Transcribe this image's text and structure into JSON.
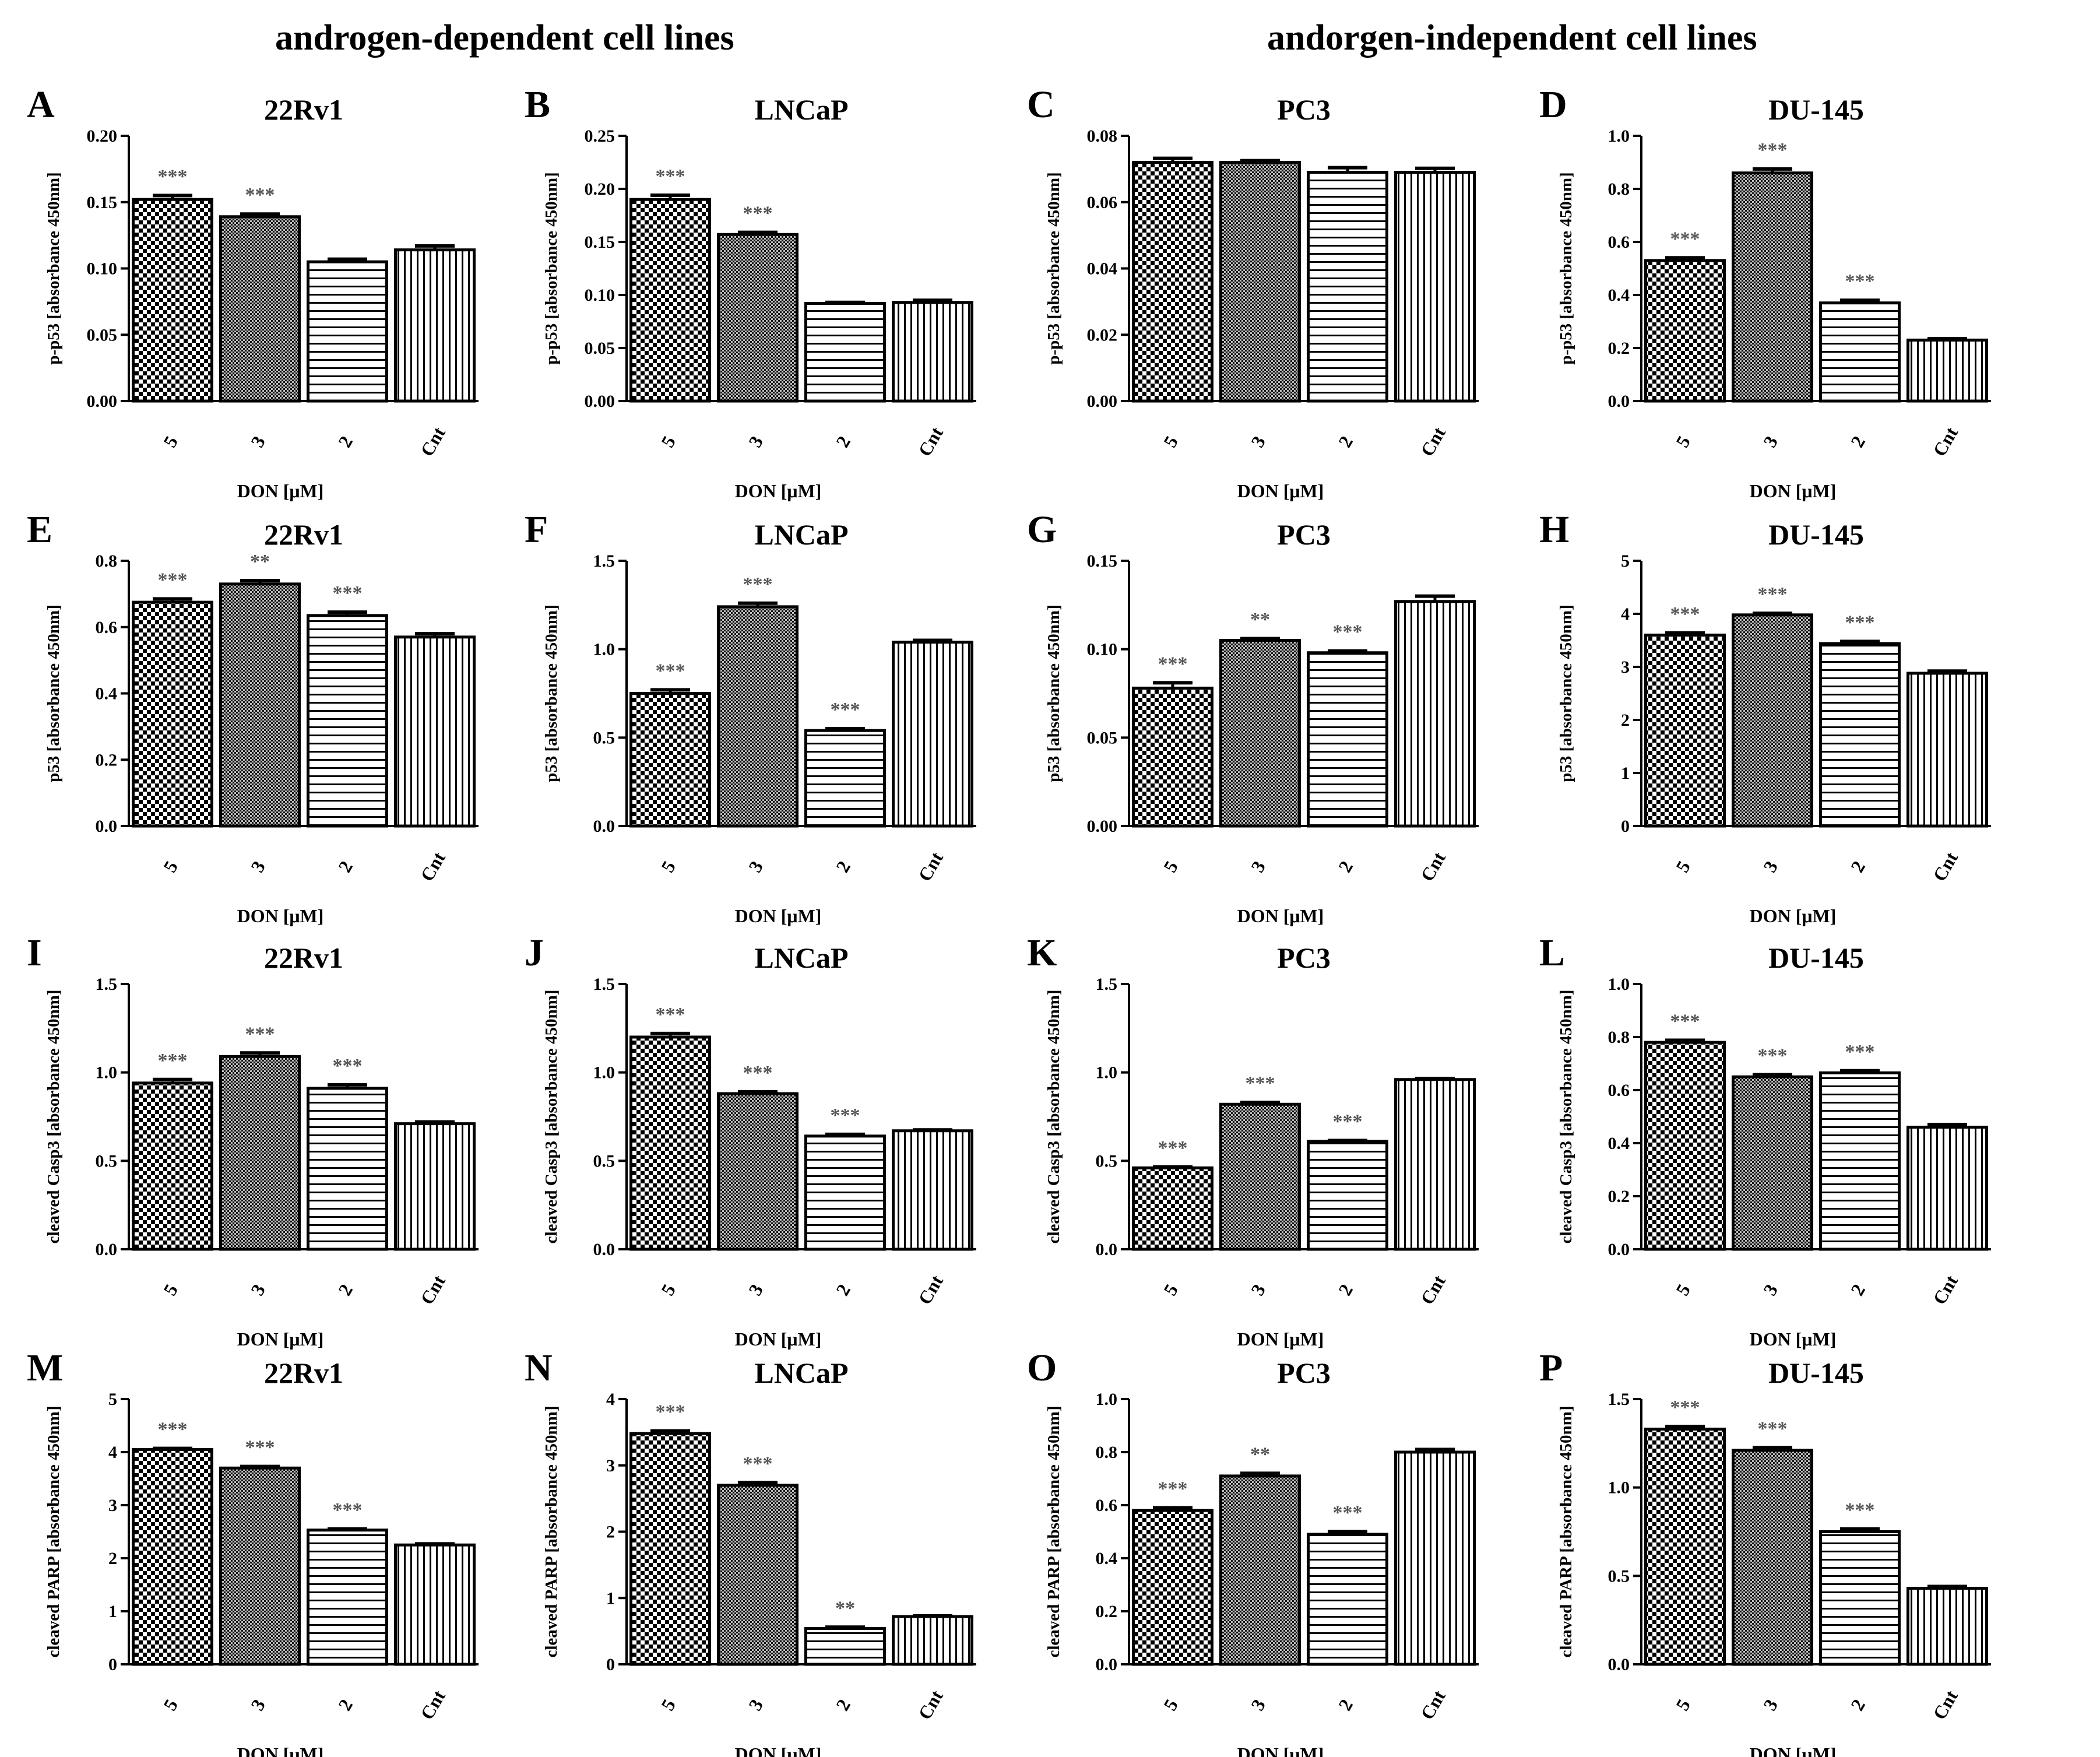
{
  "headers": {
    "left": "androgen-dependent cell lines",
    "right": "andorgen-independent cell lines"
  },
  "colors": {
    "ink": "#000000",
    "background": "#ffffff",
    "significance": "#555555"
  },
  "chart_data": [
    {
      "panel": "A",
      "type": "bar",
      "title": "22Rv1",
      "ylabel": "p-p53 [absorbance 450nm]",
      "xlabel": "DON [μM]",
      "categories": [
        "5",
        "3",
        "2",
        "Cnt"
      ],
      "values": [
        0.152,
        0.139,
        0.105,
        0.114
      ],
      "errors": [
        0.003,
        0.002,
        0.002,
        0.003
      ],
      "stars": [
        "***",
        "***",
        "",
        ""
      ],
      "ylim": [
        0,
        0.2
      ],
      "yticks": [
        "0.00",
        "0.05",
        "0.10",
        "0.15",
        "0.20"
      ],
      "patterns": [
        "check",
        "dense",
        "hlines",
        "vlines"
      ],
      "grid": false
    },
    {
      "panel": "B",
      "type": "bar",
      "title": "LNCaP",
      "ylabel": "p-p53 [absorbance 450nm]",
      "xlabel": "DON [μM]",
      "categories": [
        "5",
        "3",
        "2",
        "Cnt"
      ],
      "values": [
        0.19,
        0.157,
        0.092,
        0.093
      ],
      "errors": [
        0.004,
        0.002,
        0.001,
        0.002
      ],
      "stars": [
        "***",
        "***",
        "",
        ""
      ],
      "ylim": [
        0,
        0.25
      ],
      "yticks": [
        "0.00",
        "0.05",
        "0.10",
        "0.15",
        "0.20",
        "0.25"
      ],
      "patterns": [
        "check",
        "dense",
        "hlines",
        "vlines"
      ],
      "grid": false
    },
    {
      "panel": "C",
      "type": "bar",
      "title": "PC3",
      "ylabel": "p-p53 [absorbance 450nm]",
      "xlabel": "DON [μM]",
      "categories": [
        "5",
        "3",
        "2",
        "Cnt"
      ],
      "values": [
        0.072,
        0.072,
        0.069,
        0.069
      ],
      "errors": [
        0.0012,
        0.0005,
        0.0014,
        0.0012
      ],
      "stars": [
        "",
        "",
        "",
        ""
      ],
      "ylim": [
        0,
        0.08
      ],
      "yticks": [
        "0.00",
        "0.02",
        "0.04",
        "0.06",
        "0.08"
      ],
      "patterns": [
        "check",
        "dense",
        "hlines",
        "vlines"
      ],
      "grid": false
    },
    {
      "panel": "D",
      "type": "bar",
      "title": "DU-145",
      "ylabel": "p-p53 [absorbance 450nm]",
      "xlabel": "DON [μM]",
      "categories": [
        "5",
        "3",
        "2",
        "Cnt"
      ],
      "values": [
        0.53,
        0.86,
        0.37,
        0.23
      ],
      "errors": [
        0.01,
        0.015,
        0.01,
        0.005
      ],
      "stars": [
        "***",
        "***",
        "***",
        ""
      ],
      "ylim": [
        0,
        1.0
      ],
      "yticks": [
        "0.0",
        "0.2",
        "0.4",
        "0.6",
        "0.8",
        "1.0"
      ],
      "patterns": [
        "check",
        "dense",
        "hlines",
        "vlines"
      ],
      "grid": false
    },
    {
      "panel": "E",
      "type": "bar",
      "title": "22Rv1",
      "ylabel": "p53 [absorbance 450nm]",
      "xlabel": "DON [μM]",
      "categories": [
        "5",
        "3",
        "2",
        "Cnt"
      ],
      "values": [
        0.675,
        0.73,
        0.635,
        0.57
      ],
      "errors": [
        0.01,
        0.01,
        0.01,
        0.01
      ],
      "stars": [
        "***",
        "**",
        "***",
        ""
      ],
      "ylim": [
        0,
        0.8
      ],
      "yticks": [
        "0.0",
        "0.2",
        "0.4",
        "0.6",
        "0.8"
      ],
      "patterns": [
        "check",
        "dense",
        "hlines",
        "vlines"
      ],
      "grid": false
    },
    {
      "panel": "F",
      "type": "bar",
      "title": "LNCaP",
      "ylabel": "p53 [absorbance 450nm]",
      "xlabel": "DON [μM]",
      "categories": [
        "5",
        "3",
        "2",
        "Cnt"
      ],
      "values": [
        0.75,
        1.24,
        0.54,
        1.04
      ],
      "errors": [
        0.02,
        0.02,
        0.01,
        0.01
      ],
      "stars": [
        "***",
        "***",
        "***",
        ""
      ],
      "ylim": [
        0,
        1.5
      ],
      "yticks": [
        "0.0",
        "0.5",
        "1.0",
        "1.5"
      ],
      "patterns": [
        "check",
        "dense",
        "hlines",
        "vlines"
      ],
      "grid": false
    },
    {
      "panel": "G",
      "type": "bar",
      "title": "PC3",
      "ylabel": "p53 [absorbance 450nm]",
      "xlabel": "DON [μM]",
      "categories": [
        "5",
        "3",
        "2",
        "Cnt"
      ],
      "values": [
        0.078,
        0.105,
        0.098,
        0.127
      ],
      "errors": [
        0.003,
        0.001,
        0.001,
        0.003
      ],
      "stars": [
        "***",
        "**",
        "***",
        ""
      ],
      "ylim": [
        0,
        0.15
      ],
      "yticks": [
        "0.00",
        "0.05",
        "0.10",
        "0.15"
      ],
      "patterns": [
        "check",
        "dense",
        "hlines",
        "vlines"
      ],
      "grid": false
    },
    {
      "panel": "H",
      "type": "bar",
      "title": "DU-145",
      "ylabel": "p53 [absorbance 450nm]",
      "xlabel": "DON [μM]",
      "categories": [
        "5",
        "3",
        "2",
        "Cnt"
      ],
      "values": [
        3.6,
        3.98,
        3.44,
        2.88
      ],
      "errors": [
        0.04,
        0.03,
        0.04,
        0.04
      ],
      "stars": [
        "***",
        "***",
        "***",
        ""
      ],
      "ylim": [
        0,
        5
      ],
      "yticks": [
        "0",
        "1",
        "2",
        "3",
        "4",
        "5"
      ],
      "patterns": [
        "check",
        "dense",
        "hlines",
        "vlines"
      ],
      "grid": false
    },
    {
      "panel": "I",
      "type": "bar",
      "title": "22Rv1",
      "ylabel": "cleaved Casp3 [absorbance 450nm]",
      "xlabel": "DON [μM]",
      "categories": [
        "5",
        "3",
        "2",
        "Cnt"
      ],
      "values": [
        0.94,
        1.09,
        0.91,
        0.71
      ],
      "errors": [
        0.02,
        0.02,
        0.02,
        0.01
      ],
      "stars": [
        "***",
        "***",
        "***",
        ""
      ],
      "ylim": [
        0,
        1.5
      ],
      "yticks": [
        "0.0",
        "0.5",
        "1.0",
        "1.5"
      ],
      "patterns": [
        "check",
        "dense",
        "hlines",
        "vlines"
      ],
      "grid": false
    },
    {
      "panel": "J",
      "type": "bar",
      "title": "LNCaP",
      "ylabel": "cleaved Casp3 [absorbance 450nm]",
      "xlabel": "DON [μM]",
      "categories": [
        "5",
        "3",
        "2",
        "Cnt"
      ],
      "values": [
        1.2,
        0.88,
        0.64,
        0.67
      ],
      "errors": [
        0.02,
        0.01,
        0.01,
        0.005
      ],
      "stars": [
        "***",
        "***",
        "***",
        ""
      ],
      "ylim": [
        0,
        1.5
      ],
      "yticks": [
        "0.0",
        "0.5",
        "1.0",
        "1.5"
      ],
      "patterns": [
        "check",
        "dense",
        "hlines",
        "vlines"
      ],
      "grid": false
    },
    {
      "panel": "K",
      "type": "bar",
      "title": "PC3",
      "ylabel": "cleaved Casp3 [absorbance 450nm]",
      "xlabel": "DON [μM]",
      "categories": [
        "5",
        "3",
        "2",
        "Cnt"
      ],
      "values": [
        0.46,
        0.82,
        0.61,
        0.96
      ],
      "errors": [
        0.005,
        0.01,
        0.005,
        0.005
      ],
      "stars": [
        "***",
        "***",
        "***",
        ""
      ],
      "ylim": [
        0,
        1.5
      ],
      "yticks": [
        "0.0",
        "0.5",
        "1.0",
        "1.5"
      ],
      "patterns": [
        "check",
        "dense",
        "hlines",
        "vlines"
      ],
      "grid": false
    },
    {
      "panel": "L",
      "type": "bar",
      "title": "DU-145",
      "ylabel": "cleaved Casp3 [absorbance 450nm]",
      "xlabel": "DON [μM]",
      "categories": [
        "5",
        "3",
        "2",
        "Cnt"
      ],
      "values": [
        0.78,
        0.65,
        0.665,
        0.46
      ],
      "errors": [
        0.008,
        0.008,
        0.008,
        0.01
      ],
      "stars": [
        "***",
        "***",
        "***",
        ""
      ],
      "ylim": [
        0,
        1.0
      ],
      "yticks": [
        "0.0",
        "0.2",
        "0.4",
        "0.6",
        "0.8",
        "1.0"
      ],
      "patterns": [
        "check",
        "dense",
        "hlines",
        "vlines"
      ],
      "grid": false
    },
    {
      "panel": "M",
      "type": "bar",
      "title": "22Rv1",
      "ylabel": "cleaved PARP [absorbance 450nm]",
      "xlabel": "DON [μM]",
      "categories": [
        "5",
        "3",
        "2",
        "Cnt"
      ],
      "values": [
        4.05,
        3.7,
        2.53,
        2.25
      ],
      "errors": [
        0.02,
        0.03,
        0.02,
        0.02
      ],
      "stars": [
        "***",
        "***",
        "***",
        ""
      ],
      "ylim": [
        0,
        5
      ],
      "yticks": [
        "0",
        "1",
        "2",
        "3",
        "4",
        "5"
      ],
      "patterns": [
        "check",
        "dense",
        "hlines",
        "vlines"
      ],
      "grid": false
    },
    {
      "panel": "N",
      "type": "bar",
      "title": "LNCaP",
      "ylabel": "cleaved PARP [absorbance 450nm]",
      "xlabel": "DON [μM]",
      "categories": [
        "5",
        "3",
        "2",
        "Cnt"
      ],
      "values": [
        3.48,
        2.7,
        0.54,
        0.72
      ],
      "errors": [
        0.04,
        0.04,
        0.02,
        0.01
      ],
      "stars": [
        "***",
        "***",
        "**",
        ""
      ],
      "ylim": [
        0,
        4
      ],
      "yticks": [
        "0",
        "1",
        "2",
        "3",
        "4"
      ],
      "patterns": [
        "check",
        "dense",
        "hlines",
        "vlines"
      ],
      "grid": false
    },
    {
      "panel": "O",
      "type": "bar",
      "title": "PC3",
      "ylabel": "cleaved PARP [absorbance 450nm]",
      "xlabel": "DON [μM]",
      "categories": [
        "5",
        "3",
        "2",
        "Cnt"
      ],
      "values": [
        0.58,
        0.71,
        0.49,
        0.8
      ],
      "errors": [
        0.01,
        0.01,
        0.01,
        0.01
      ],
      "stars": [
        "***",
        "**",
        "***",
        ""
      ],
      "ylim": [
        0,
        1.0
      ],
      "yticks": [
        "0.0",
        "0.2",
        "0.4",
        "0.6",
        "0.8",
        "1.0"
      ],
      "patterns": [
        "check",
        "dense",
        "hlines",
        "vlines"
      ],
      "grid": false
    },
    {
      "panel": "P",
      "type": "bar",
      "title": "DU-145",
      "ylabel": "cleaved PARP [absorbance 450nm]",
      "xlabel": "DON [μM]",
      "categories": [
        "5",
        "3",
        "2",
        "Cnt"
      ],
      "values": [
        1.33,
        1.21,
        0.75,
        0.43
      ],
      "errors": [
        0.015,
        0.015,
        0.015,
        0.01
      ],
      "stars": [
        "***",
        "***",
        "***",
        ""
      ],
      "ylim": [
        0,
        1.5
      ],
      "yticks": [
        "0.0",
        "0.5",
        "1.0",
        "1.5"
      ],
      "patterns": [
        "check",
        "dense",
        "hlines",
        "vlines"
      ],
      "grid": false
    }
  ]
}
